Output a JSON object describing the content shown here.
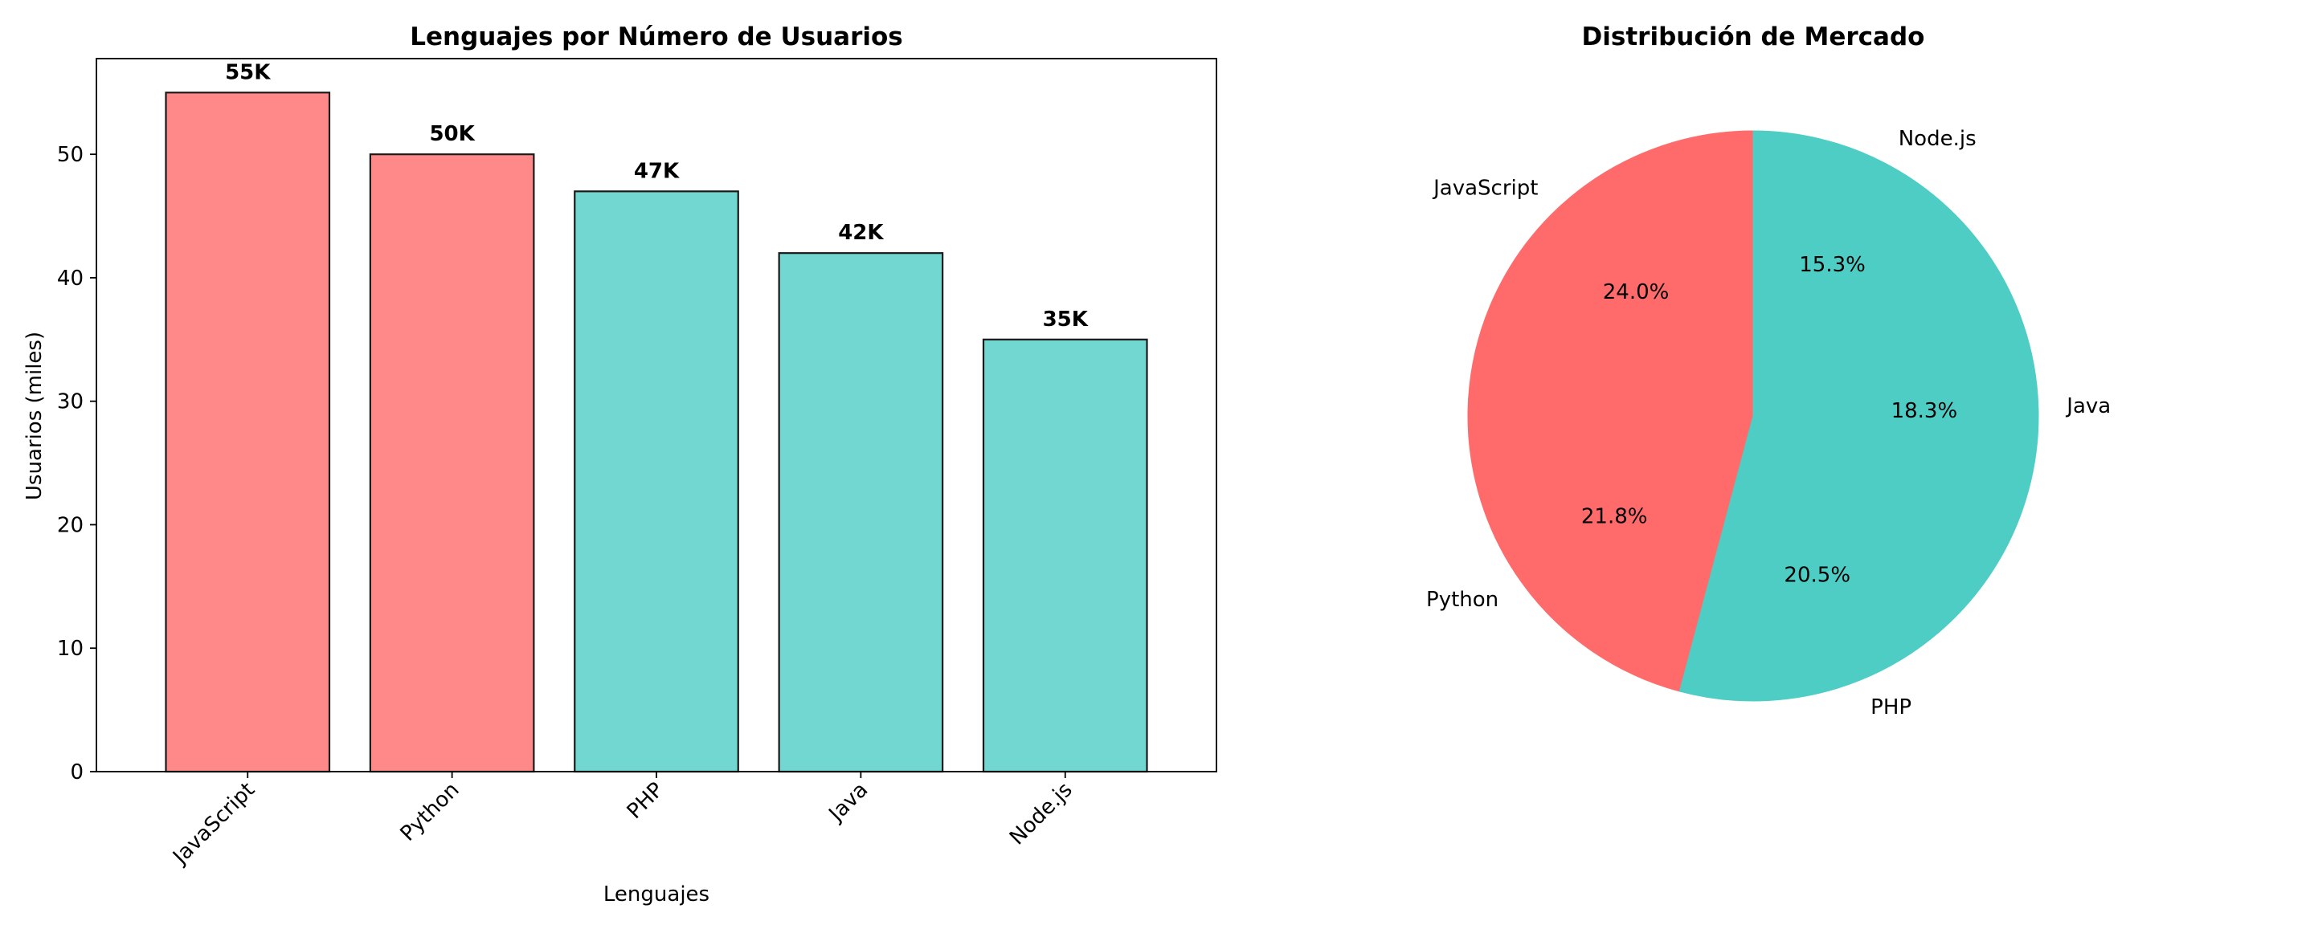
{
  "colors": {
    "accent_red": "#ff6b6b",
    "accent_teal": "#4ecdc4",
    "edge": "#1a1a1a",
    "background": "#ffffff"
  },
  "chart_data": [
    {
      "type": "bar",
      "title": "Lenguajes por Número de Usuarios",
      "xlabel": "Lenguajes",
      "ylabel": "Usuarios (miles)",
      "categories": [
        "JavaScript",
        "Python",
        "PHP",
        "Java",
        "Node.js"
      ],
      "values": [
        55,
        50,
        47,
        42,
        35
      ],
      "data_labels": [
        "55K",
        "50K",
        "47K",
        "42K",
        "35K"
      ],
      "bar_colors": [
        "#ff6b6b",
        "#ff6b6b",
        "#4ecdc4",
        "#4ecdc4",
        "#4ecdc4"
      ],
      "ylim": [
        0,
        57.75
      ],
      "yticks": [
        0,
        10,
        20,
        30,
        40,
        50
      ],
      "xtick_rotation": 45,
      "grid": false,
      "legend": false
    },
    {
      "type": "pie",
      "title": "Distribución de Mercado",
      "labels": [
        "JavaScript",
        "Python",
        "PHP",
        "Java",
        "Node.js"
      ],
      "values": [
        24.0,
        21.8,
        20.5,
        18.3,
        15.3
      ],
      "pct_labels": [
        "24.0%",
        "21.8%",
        "20.5%",
        "18.3%",
        "15.3%"
      ],
      "slice_colors": [
        "#ff6b6b",
        "#ff6b6b",
        "#4ecdc4",
        "#4ecdc4",
        "#4ecdc4"
      ],
      "start_angle": 90,
      "direction": "counterclockwise",
      "legend": false
    }
  ]
}
